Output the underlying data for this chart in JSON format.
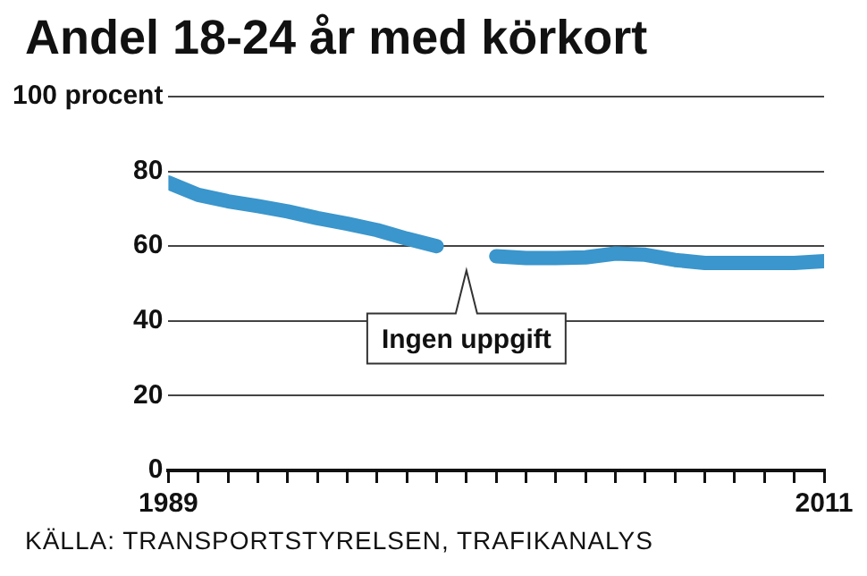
{
  "chart_data": {
    "type": "line",
    "title": "Andel 18-24 år med körkort",
    "x": [
      1989,
      1990,
      1991,
      1992,
      1993,
      1994,
      1995,
      1996,
      1997,
      1998,
      1999,
      2000,
      2001,
      2002,
      2003,
      2004,
      2005,
      2006,
      2007,
      2008,
      2009,
      2010,
      2011
    ],
    "series": [
      {
        "color": "#3a96cc",
        "values": [
          77,
          73.7,
          72,
          70.7,
          69.3,
          67.5,
          66,
          64.3,
          62,
          60,
          null,
          57.3,
          56.8,
          56.8,
          57,
          58,
          57.7,
          56.3,
          55.5,
          55.5,
          55.5,
          55.5,
          56
        ]
      }
    ],
    "xlim": [
      1989,
      2011
    ],
    "xticks": [
      1989,
      {
        "value": 1990,
        "label": null
      },
      {
        "value": 1991,
        "label": null
      },
      {
        "value": 1992,
        "label": null
      },
      {
        "value": 1993,
        "label": null
      },
      {
        "value": 1994,
        "label": null
      },
      {
        "value": 1995,
        "label": null
      },
      {
        "value": 1996,
        "label": null
      },
      {
        "value": 1997,
        "label": null
      },
      {
        "value": 1998,
        "label": null
      },
      {
        "value": 1999,
        "label": null
      },
      {
        "value": 2000,
        "label": null
      },
      {
        "value": 2001,
        "label": null
      },
      {
        "value": 2002,
        "label": null
      },
      {
        "value": 2003,
        "label": null
      },
      {
        "value": 2004,
        "label": null
      },
      {
        "value": 2005,
        "label": null
      },
      {
        "value": 2006,
        "label": null
      },
      {
        "value": 2007,
        "label": null
      },
      {
        "value": 2008,
        "label": null
      },
      {
        "value": 2009,
        "label": null
      },
      {
        "value": 2010,
        "label": null
      },
      2011
    ],
    "ylim": [
      0,
      100
    ],
    "yticks": [
      0,
      20,
      40,
      60,
      80,
      {
        "value": 100,
        "label": "100 procent"
      }
    ],
    "grid": "y",
    "legend": false,
    "marker": "none",
    "line_style": "solid",
    "annotations": [
      "Ingen uppgift",
      "KÄLLA: TRANSPORTSTYRELSEN, TRAFIKANALYS"
    ]
  }
}
